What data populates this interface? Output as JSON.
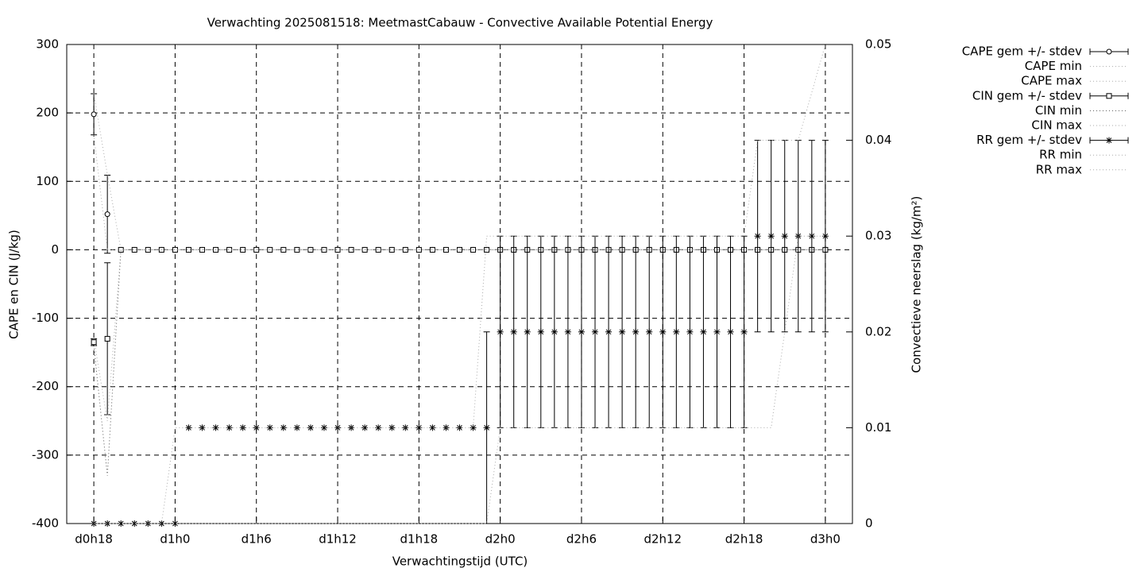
{
  "chart_data": {
    "type": "errorbar",
    "title": "Verwachting 2025081518: MeetmastCabauw - Convective Available Potential Energy",
    "x_label": "Verwachtingstijd (UTC)",
    "y_label": "CAPE en CIN (J/kg)",
    "y2_label": "Convectieve neerslag (kg/m²)",
    "xlim": [
      16,
      74
    ],
    "xticks": [
      {
        "value": 18,
        "label": "d0h18"
      },
      {
        "value": 24,
        "label": "d1h0"
      },
      {
        "value": 30,
        "label": "d1h6"
      },
      {
        "value": 36,
        "label": "d1h12"
      },
      {
        "value": 42,
        "label": "d1h18"
      },
      {
        "value": 48,
        "label": "d2h0"
      },
      {
        "value": 54,
        "label": "d2h6"
      },
      {
        "value": 60,
        "label": "d2h12"
      },
      {
        "value": 66,
        "label": "d2h18"
      },
      {
        "value": 72,
        "label": "d3h0"
      }
    ],
    "ylim": [
      -400,
      300
    ],
    "yticks": [
      -400,
      -300,
      -200,
      -100,
      0,
      100,
      200,
      300
    ],
    "y2lim": [
      0,
      0.05
    ],
    "y2ticks": [
      0,
      0.01,
      0.02,
      0.03,
      0.04,
      0.05
    ],
    "grid": true,
    "x": [
      18,
      19,
      20,
      21,
      22,
      23,
      24,
      25,
      26,
      27,
      28,
      29,
      30,
      31,
      32,
      33,
      34,
      35,
      36,
      37,
      38,
      39,
      40,
      41,
      42,
      43,
      44,
      45,
      46,
      47,
      48,
      49,
      50,
      51,
      52,
      53,
      54,
      55,
      56,
      57,
      58,
      59,
      60,
      61,
      62,
      63,
      64,
      65,
      66,
      67,
      68,
      69,
      70,
      71,
      72
    ],
    "series": [
      {
        "name": "CAPE gem +/- stdev",
        "style": "errorbars",
        "marker": "circle",
        "color": "#000000",
        "values": [
          198,
          52,
          0,
          0,
          0,
          0,
          0,
          0,
          0,
          0,
          0,
          0,
          0,
          0,
          0,
          0,
          0,
          0,
          0,
          0,
          0,
          0,
          0,
          0,
          0,
          0,
          0,
          0,
          0,
          0,
          0,
          0,
          0,
          0,
          0,
          0,
          0,
          0,
          0,
          0,
          0,
          0,
          0,
          0,
          0,
          0,
          0,
          0,
          0,
          0,
          0,
          0,
          0,
          0,
          0
        ],
        "errors": [
          30,
          57,
          0,
          0,
          0,
          0,
          0,
          0,
          0,
          0,
          0,
          0,
          0,
          0,
          0,
          0,
          0,
          0,
          0,
          0,
          0,
          0,
          0,
          0,
          0,
          0,
          0,
          0,
          0,
          0,
          0,
          0,
          0,
          0,
          0,
          0,
          0,
          0,
          0,
          0,
          0,
          0,
          0,
          0,
          0,
          0,
          0,
          0,
          0,
          0,
          0,
          0,
          0,
          0,
          0
        ]
      },
      {
        "name": "CAPE min",
        "style": "dotted",
        "color": "#aaaaaa",
        "values": [
          168,
          0,
          0,
          0,
          0,
          0,
          0,
          0,
          0,
          0,
          0,
          0,
          0,
          0,
          0,
          0,
          0,
          0,
          0,
          0,
          0,
          0,
          0,
          0,
          0,
          0,
          0,
          0,
          0,
          0,
          0,
          0,
          0,
          0,
          0,
          0,
          0,
          0,
          0,
          0,
          0,
          0,
          0,
          0,
          0,
          0,
          0,
          0,
          0,
          0,
          0,
          0,
          0,
          0,
          0
        ]
      },
      {
        "name": "CAPE max",
        "style": "dotted",
        "color": "#aaaaaa",
        "values": [
          228,
          110,
          0,
          0,
          0,
          0,
          0,
          0,
          0,
          0,
          0,
          0,
          0,
          0,
          0,
          0,
          0,
          0,
          0,
          0,
          0,
          0,
          0,
          0,
          0,
          0,
          0,
          0,
          0,
          0,
          0,
          0,
          0,
          0,
          0,
          0,
          0,
          0,
          0,
          0,
          0,
          0,
          0,
          0,
          0,
          0,
          0,
          0,
          0,
          0,
          0,
          0,
          0,
          0,
          0
        ]
      },
      {
        "name": "CIN gem +/- stdev",
        "style": "errorbars",
        "marker": "square",
        "color": "#000000",
        "values": [
          -135,
          -130,
          0,
          0,
          0,
          0,
          0,
          0,
          0,
          0,
          0,
          0,
          0,
          0,
          0,
          0,
          0,
          0,
          0,
          0,
          0,
          0,
          0,
          0,
          0,
          0,
          0,
          0,
          0,
          0,
          0,
          0,
          0,
          0,
          0,
          0,
          0,
          0,
          0,
          0,
          0,
          0,
          0,
          0,
          0,
          0,
          0,
          0,
          0,
          0,
          0,
          0,
          0,
          0,
          0
        ],
        "errors": [
          5,
          111,
          0,
          0,
          0,
          0,
          0,
          0,
          0,
          0,
          0,
          0,
          0,
          0,
          0,
          0,
          0,
          0,
          0,
          0,
          0,
          0,
          0,
          0,
          0,
          0,
          0,
          0,
          0,
          0,
          0,
          0,
          0,
          0,
          0,
          0,
          0,
          0,
          0,
          0,
          0,
          0,
          0,
          0,
          0,
          0,
          0,
          0,
          0,
          0,
          0,
          0,
          0,
          0,
          0
        ]
      },
      {
        "name": "CIN min",
        "style": "dotted",
        "color": "#555555",
        "values": [
          -140,
          -330,
          0,
          0,
          0,
          0,
          0,
          0,
          0,
          0,
          0,
          0,
          0,
          0,
          0,
          0,
          0,
          0,
          0,
          0,
          0,
          0,
          0,
          0,
          0,
          0,
          0,
          0,
          0,
          0,
          0,
          0,
          0,
          0,
          0,
          0,
          0,
          0,
          0,
          0,
          0,
          0,
          0,
          0,
          0,
          0,
          0,
          0,
          0,
          0,
          0,
          0,
          0,
          0,
          0
        ]
      },
      {
        "name": "CIN max",
        "style": "dotted",
        "color": "#aaaaaa",
        "values": [
          -130,
          -250,
          0,
          0,
          0,
          0,
          0,
          0,
          0,
          0,
          0,
          0,
          0,
          0,
          0,
          0,
          0,
          0,
          0,
          0,
          0,
          0,
          0,
          0,
          0,
          0,
          0,
          0,
          0,
          0,
          0,
          0,
          0,
          0,
          0,
          0,
          0,
          0,
          0,
          0,
          0,
          0,
          0,
          0,
          0,
          0,
          0,
          0,
          0,
          0,
          0,
          0,
          0,
          0,
          0
        ]
      },
      {
        "name": "RR gem +/- stdev",
        "style": "errorbars",
        "marker": "star",
        "color": "#000000",
        "axis": "y2",
        "values": [
          0,
          0,
          0,
          0,
          0,
          0,
          0,
          0.01,
          0.01,
          0.01,
          0.01,
          0.01,
          0.01,
          0.01,
          0.01,
          0.01,
          0.01,
          0.01,
          0.01,
          0.01,
          0.01,
          0.01,
          0.01,
          0.01,
          0.01,
          0.01,
          0.01,
          0.01,
          0.01,
          0.01,
          0.02,
          0.02,
          0.02,
          0.02,
          0.02,
          0.02,
          0.02,
          0.02,
          0.02,
          0.02,
          0.02,
          0.02,
          0.02,
          0.02,
          0.02,
          0.02,
          0.02,
          0.02,
          0.02,
          0.03,
          0.03,
          0.03,
          0.03,
          0.03,
          0.03
        ],
        "errors": [
          0,
          0,
          0,
          0,
          0,
          0,
          0,
          0,
          0,
          0,
          0,
          0,
          0,
          0,
          0,
          0,
          0,
          0,
          0,
          0,
          0,
          0,
          0,
          0,
          0,
          0,
          0,
          0,
          0,
          0.01,
          0.01,
          0.01,
          0.01,
          0.01,
          0.01,
          0.01,
          0.01,
          0.01,
          0.01,
          0.01,
          0.01,
          0.01,
          0.01,
          0.01,
          0.01,
          0.01,
          0.01,
          0.01,
          0.01,
          0.01,
          0.01,
          0.01,
          0.01,
          0.01,
          0.01
        ]
      },
      {
        "name": "RR min",
        "style": "dotted",
        "color": "#aaaaaa",
        "axis": "y2",
        "values": [
          0,
          0,
          0,
          0,
          0,
          0,
          0,
          0,
          0,
          0,
          0,
          0,
          0,
          0,
          0,
          0,
          0,
          0,
          0,
          0,
          0,
          0,
          0,
          0,
          0,
          0,
          0,
          0,
          0,
          0,
          0.01,
          0.01,
          0.01,
          0.01,
          0.01,
          0.01,
          0.01,
          0.01,
          0.01,
          0.01,
          0.01,
          0.01,
          0.01,
          0.01,
          0.01,
          0.01,
          0.01,
          0.01,
          0.01,
          0.01,
          0.01,
          0.02,
          0.03,
          0.03,
          0.03
        ]
      },
      {
        "name": "RR max",
        "style": "dotted",
        "color": "#aaaaaa",
        "axis": "y2",
        "values": [
          0,
          0,
          0,
          0,
          0,
          0,
          0.01,
          0.01,
          0.01,
          0.01,
          0.01,
          0.01,
          0.01,
          0.01,
          0.01,
          0.01,
          0.01,
          0.01,
          0.01,
          0.01,
          0.01,
          0.01,
          0.01,
          0.01,
          0.01,
          0.01,
          0.01,
          0.01,
          0.01,
          0.03,
          0.03,
          0.03,
          0.03,
          0.03,
          0.03,
          0.03,
          0.03,
          0.03,
          0.03,
          0.03,
          0.03,
          0.03,
          0.03,
          0.03,
          0.03,
          0.03,
          0.03,
          0.03,
          0.03,
          0.04,
          0.04,
          0.04,
          0.04,
          0.045,
          0.05
        ]
      }
    ]
  }
}
